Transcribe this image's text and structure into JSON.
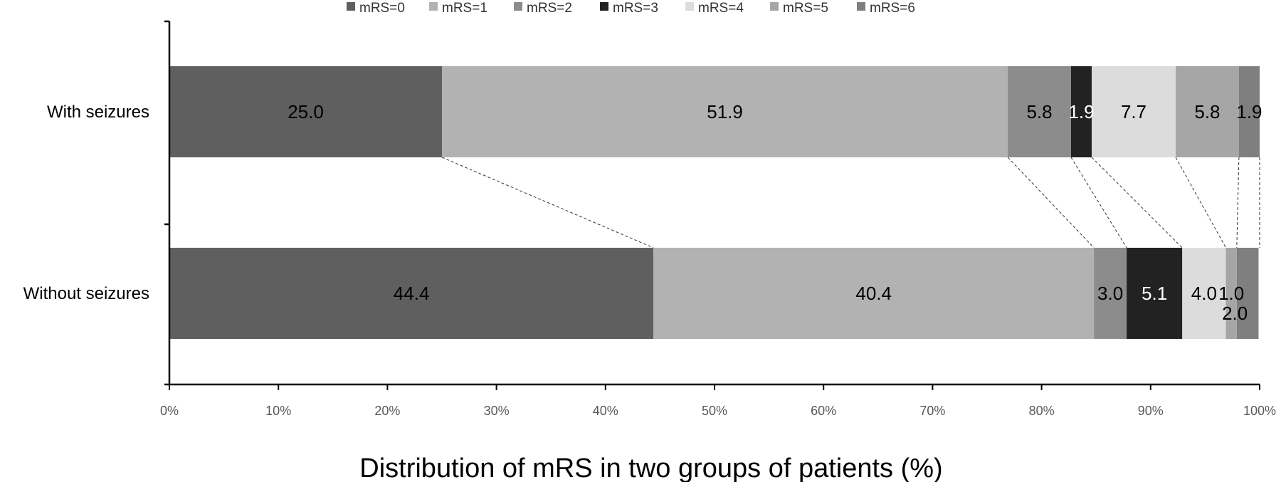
{
  "chart_data": {
    "type": "bar",
    "orientation": "horizontal",
    "stacked": "percent",
    "xlabel": "Distribution of mRS in two groups of patients (%)",
    "ylabel": "",
    "xlim": [
      0,
      100
    ],
    "x_ticks": [
      "0%",
      "10%",
      "20%",
      "30%",
      "40%",
      "50%",
      "60%",
      "70%",
      "80%",
      "90%",
      "100%"
    ],
    "legend_position": "top",
    "grid": false,
    "categories": [
      "With seizures",
      "Without seizures"
    ],
    "series": [
      {
        "name": "mRS=0",
        "color": "#5f5f5f",
        "values": [
          25.0,
          44.4
        ],
        "labels": [
          "25.0",
          "44.4"
        ],
        "label_colors": [
          "#000000",
          "#000000"
        ]
      },
      {
        "name": "mRS=1",
        "color": "#b2b2b2",
        "values": [
          51.9,
          40.4
        ],
        "labels": [
          "51.9",
          "40.4"
        ],
        "label_colors": [
          "#000000",
          "#000000"
        ]
      },
      {
        "name": "mRS=2",
        "color": "#8c8c8c",
        "values": [
          5.8,
          3.0
        ],
        "labels": [
          "5.8",
          "3.0"
        ],
        "label_colors": [
          "#000000",
          "#000000"
        ]
      },
      {
        "name": "mRS=3",
        "color": "#222222",
        "values": [
          1.9,
          5.1
        ],
        "labels": [
          "1.9",
          "5.1"
        ],
        "label_colors": [
          "#ffffff",
          "#ffffff"
        ]
      },
      {
        "name": "mRS=4",
        "color": "#dcdcdc",
        "values": [
          7.7,
          4.0
        ],
        "labels": [
          "7.7",
          "4.0"
        ],
        "label_colors": [
          "#000000",
          "#000000"
        ]
      },
      {
        "name": "mRS=5",
        "color": "#a6a6a6",
        "values": [
          5.8,
          1.0
        ],
        "labels": [
          "5.8",
          "1.0"
        ],
        "label_colors": [
          "#000000",
          "#000000"
        ]
      },
      {
        "name": "mRS=6",
        "color": "#7f7f7f",
        "values": [
          1.9,
          2.0
        ],
        "labels": [
          "1.9",
          "2.0"
        ],
        "label_colors": [
          "#000000",
          "#000000"
        ]
      }
    ],
    "connector_lines": "dashed"
  }
}
